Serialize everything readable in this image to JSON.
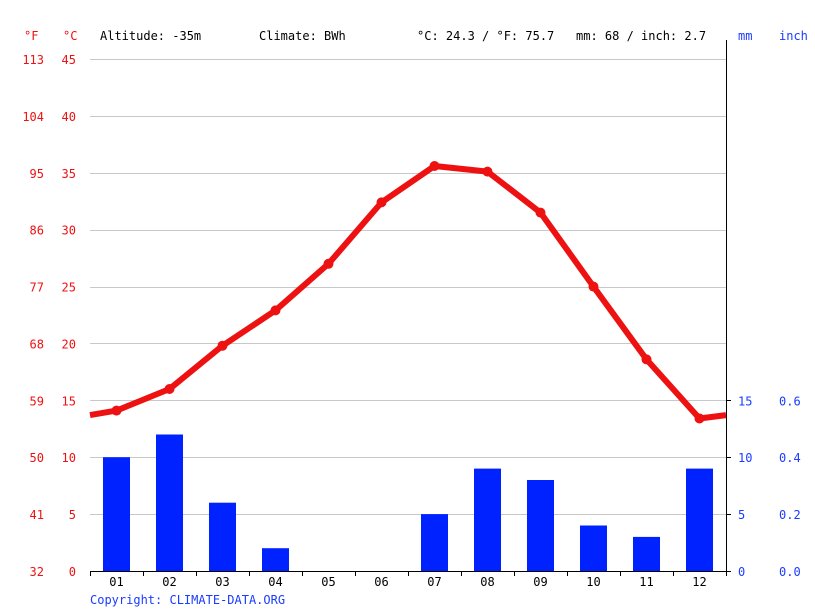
{
  "header": {
    "left_unit_f": "°F",
    "left_unit_c": "°C",
    "altitude": "Altitude: -35m",
    "climate": "Climate: BWh",
    "temp_avg": "°C: 24.3 / °F: 75.7",
    "precip_total": "mm: 68 / inch: 2.7",
    "right_unit_mm": "mm",
    "right_unit_inch": "inch"
  },
  "copyright": "Copyright: CLIMATE-DATA.ORG",
  "colors": {
    "temperature": "#ee1111",
    "precipitation": "#0022ff",
    "grid": "#c8c8c8",
    "right_axis_text": "#1a3cff"
  },
  "chart_data": {
    "type": "bar+line",
    "categories": [
      "01",
      "02",
      "03",
      "04",
      "05",
      "06",
      "07",
      "08",
      "09",
      "10",
      "11",
      "12"
    ],
    "precipitation_mm": [
      10,
      12,
      6,
      2,
      0,
      0,
      5,
      9,
      8,
      4,
      3,
      9
    ],
    "temperature_c": [
      14.1,
      16.0,
      19.8,
      22.9,
      27.0,
      32.4,
      35.6,
      35.1,
      31.5,
      25.0,
      18.6,
      13.4
    ],
    "temperature_edges_c": [
      13.7,
      13.7
    ],
    "left_axis_c_ticks": [
      "0",
      "5",
      "10",
      "15",
      "20",
      "25",
      "30",
      "35",
      "40",
      "45"
    ],
    "left_axis_f_ticks": [
      "32",
      "41",
      "50",
      "59",
      "68",
      "77",
      "86",
      "95",
      "104",
      "113"
    ],
    "right_axis_mm_ticks": [
      "0",
      "5",
      "10",
      "15"
    ],
    "right_axis_inch_ticks": [
      "0.0",
      "0.2",
      "0.4",
      "0.6"
    ],
    "ylim_c": [
      0,
      45
    ],
    "ylim_mm": [
      0,
      45
    ],
    "grid": true
  }
}
